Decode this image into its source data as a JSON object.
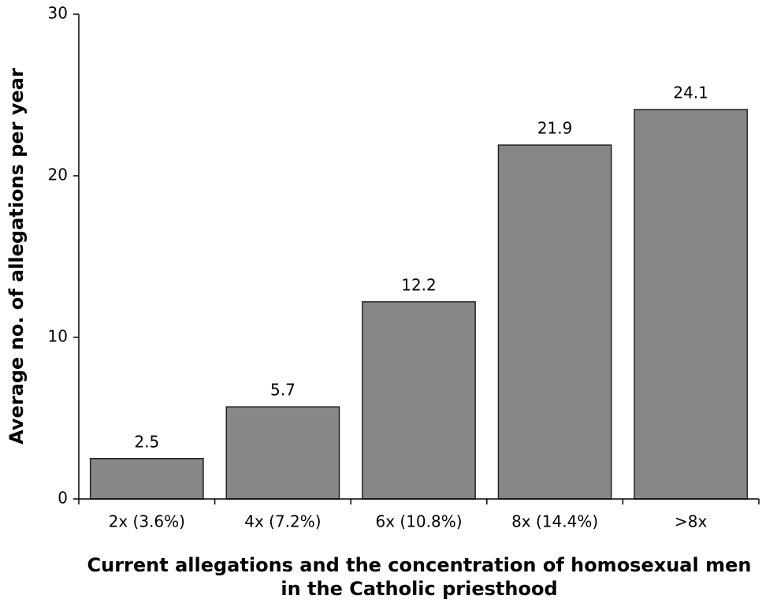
{
  "chart_data": {
    "type": "bar",
    "xlabel": [
      "Current allegations and the concentration of homosexual men",
      "in the Catholic priesthood"
    ],
    "ylabel": "Average no. of allegations per year",
    "categories": [
      "2x (3.6%)",
      "4x (7.2%)",
      "6x (10.8%)",
      "8x (14.4%)",
      ">8x"
    ],
    "values": [
      2.5,
      5.7,
      12.2,
      21.9,
      24.1
    ],
    "color": "#878787",
    "ylim": [
      0,
      30
    ],
    "yticks": [
      0,
      10,
      20,
      30
    ],
    "grid": false
  }
}
